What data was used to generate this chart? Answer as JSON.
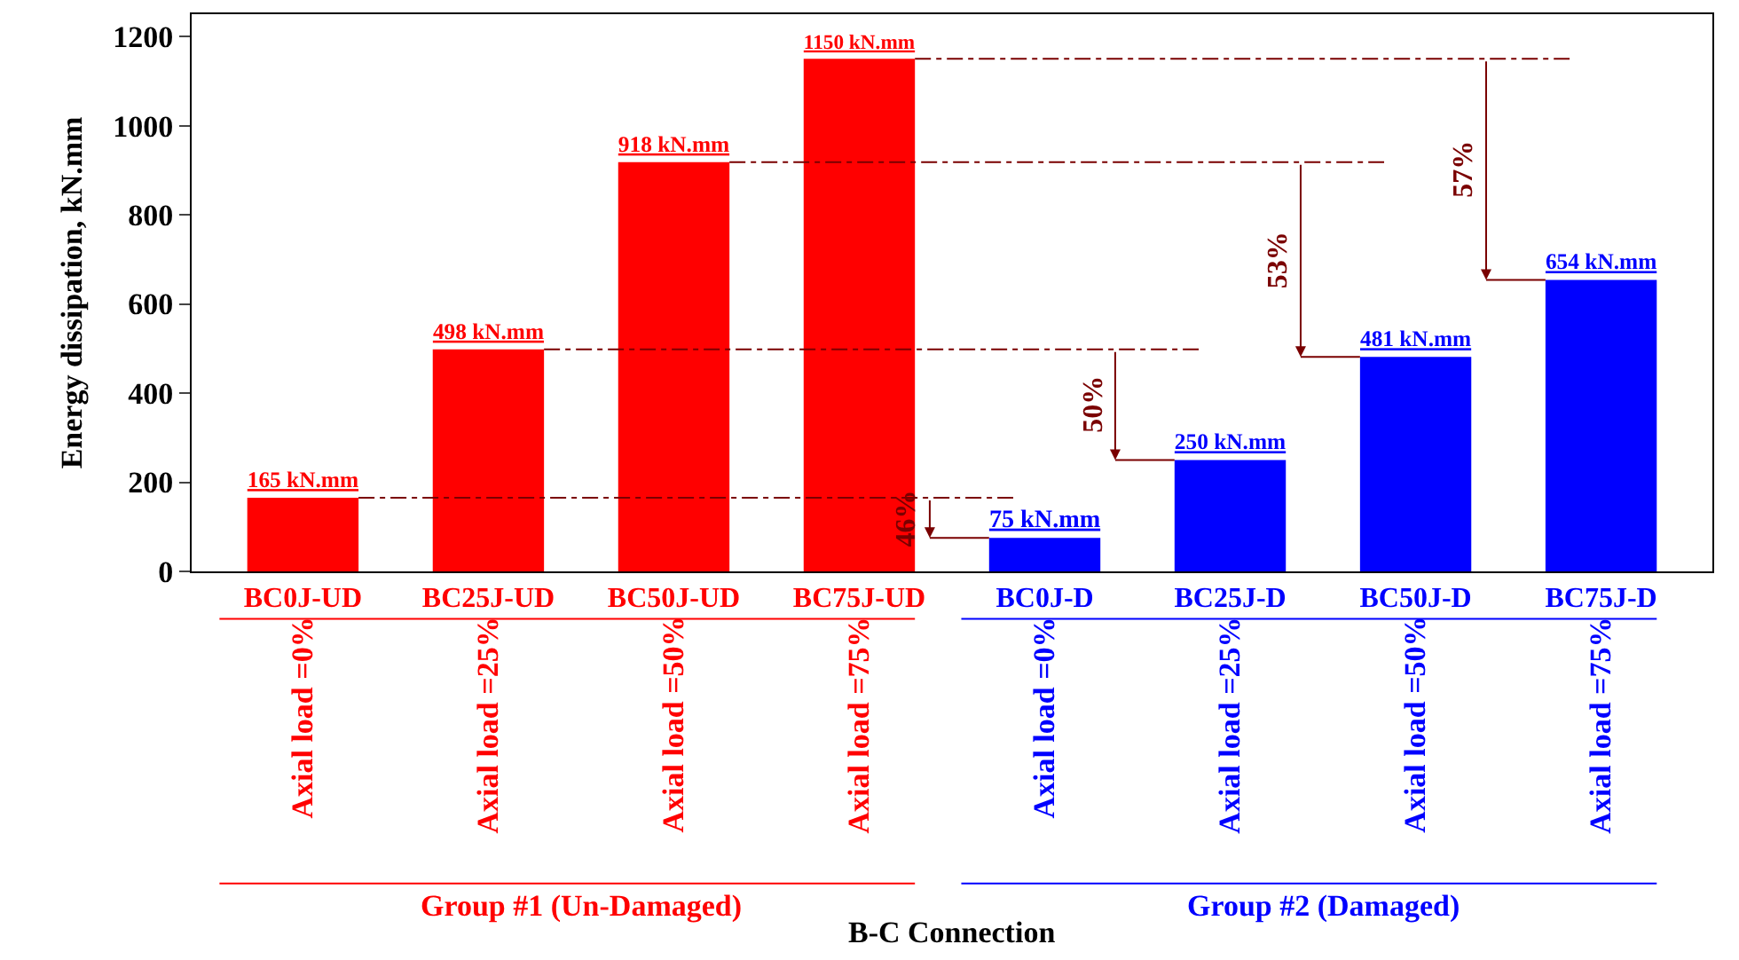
{
  "chart_data": {
    "type": "bar",
    "ylabel": "Energy dissipation, kN.mm",
    "categories": [
      "BC0J-UD",
      "BC25J-UD",
      "BC50J-UD",
      "BC75J-UD",
      "BC0J-D",
      "BC25J-D",
      "BC50J-D",
      "BC75J-D"
    ],
    "values": [
      165,
      498,
      918,
      1150,
      75,
      250,
      481,
      654
    ],
    "colors": [
      "#ff0000",
      "#ff0000",
      "#ff0000",
      "#ff0000",
      "#0000ff",
      "#0000ff",
      "#0000ff",
      "#0000ff"
    ],
    "value_labels": [
      "165 kN.mm",
      "498 kN.mm",
      "918 kN.mm",
      "1150 kN.mm",
      "75 kN.mm",
      "250 kN.mm",
      "481 kN.mm",
      "654 kN.mm"
    ],
    "ylim": [
      0,
      1250
    ],
    "yticks": [
      0,
      200,
      400,
      600,
      800,
      1000,
      1200
    ],
    "grid": false,
    "annotations": [
      "46%",
      "50%",
      "53%",
      "57%",
      "Axial load =0%",
      "Axial load =25%",
      "Axial load =50%",
      "Axial load =75%",
      "Axial load =0%",
      "Axial load =25%",
      "Axial load =50%",
      "Axial load =75%",
      "Group #1 (Un-Damaged)",
      "Group #2 (Damaged)",
      "B-C Connection"
    ]
  }
}
